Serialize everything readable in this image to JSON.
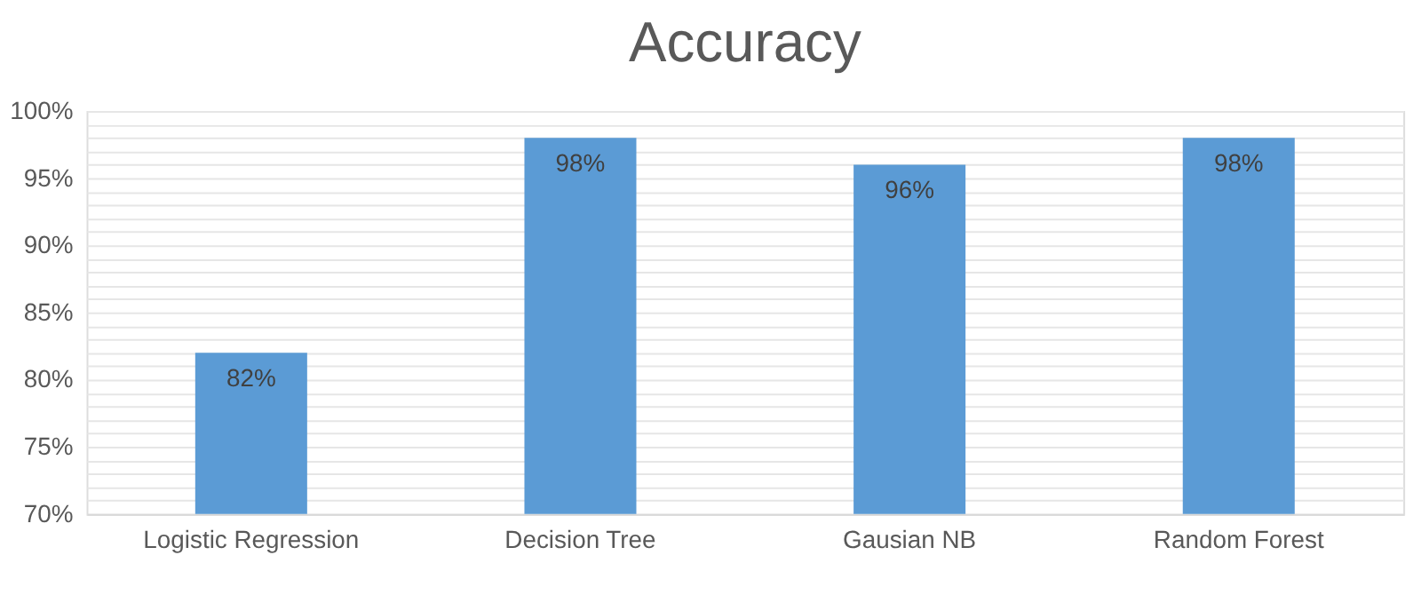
{
  "chart_data": {
    "type": "bar",
    "title": "Accuracy",
    "categories": [
      "Logistic Regression",
      "Decision Tree",
      "Gausian NB",
      "Random Forest"
    ],
    "values": [
      82,
      98,
      96,
      98
    ],
    "color": "#5b9bd5",
    "value_labels": [
      "82%",
      "98%",
      "96%",
      "98%"
    ],
    "ylim": [
      70,
      100
    ],
    "yticks": [
      {
        "value": 70,
        "label": "70%"
      },
      {
        "value": 71,
        "label": null
      },
      {
        "value": 72,
        "label": null
      },
      {
        "value": 73,
        "label": null
      },
      {
        "value": 74,
        "label": null
      },
      {
        "value": 75,
        "label": "75%"
      },
      {
        "value": 76,
        "label": null
      },
      {
        "value": 77,
        "label": null
      },
      {
        "value": 78,
        "label": null
      },
      {
        "value": 79,
        "label": null
      },
      {
        "value": 80,
        "label": "80%"
      },
      {
        "value": 81,
        "label": null
      },
      {
        "value": 82,
        "label": null
      },
      {
        "value": 83,
        "label": null
      },
      {
        "value": 84,
        "label": null
      },
      {
        "value": 85,
        "label": "85%"
      },
      {
        "value": 86,
        "label": null
      },
      {
        "value": 87,
        "label": null
      },
      {
        "value": 88,
        "label": null
      },
      {
        "value": 89,
        "label": null
      },
      {
        "value": 90,
        "label": "90%"
      },
      {
        "value": 91,
        "label": null
      },
      {
        "value": 92,
        "label": null
      },
      {
        "value": 93,
        "label": null
      },
      {
        "value": 94,
        "label": null
      },
      {
        "value": 95,
        "label": "95%"
      },
      {
        "value": 96,
        "label": null
      },
      {
        "value": 97,
        "label": null
      },
      {
        "value": 98,
        "label": null
      },
      {
        "value": 99,
        "label": null
      },
      {
        "value": 100,
        "label": "100%"
      }
    ],
    "grid": "y"
  }
}
